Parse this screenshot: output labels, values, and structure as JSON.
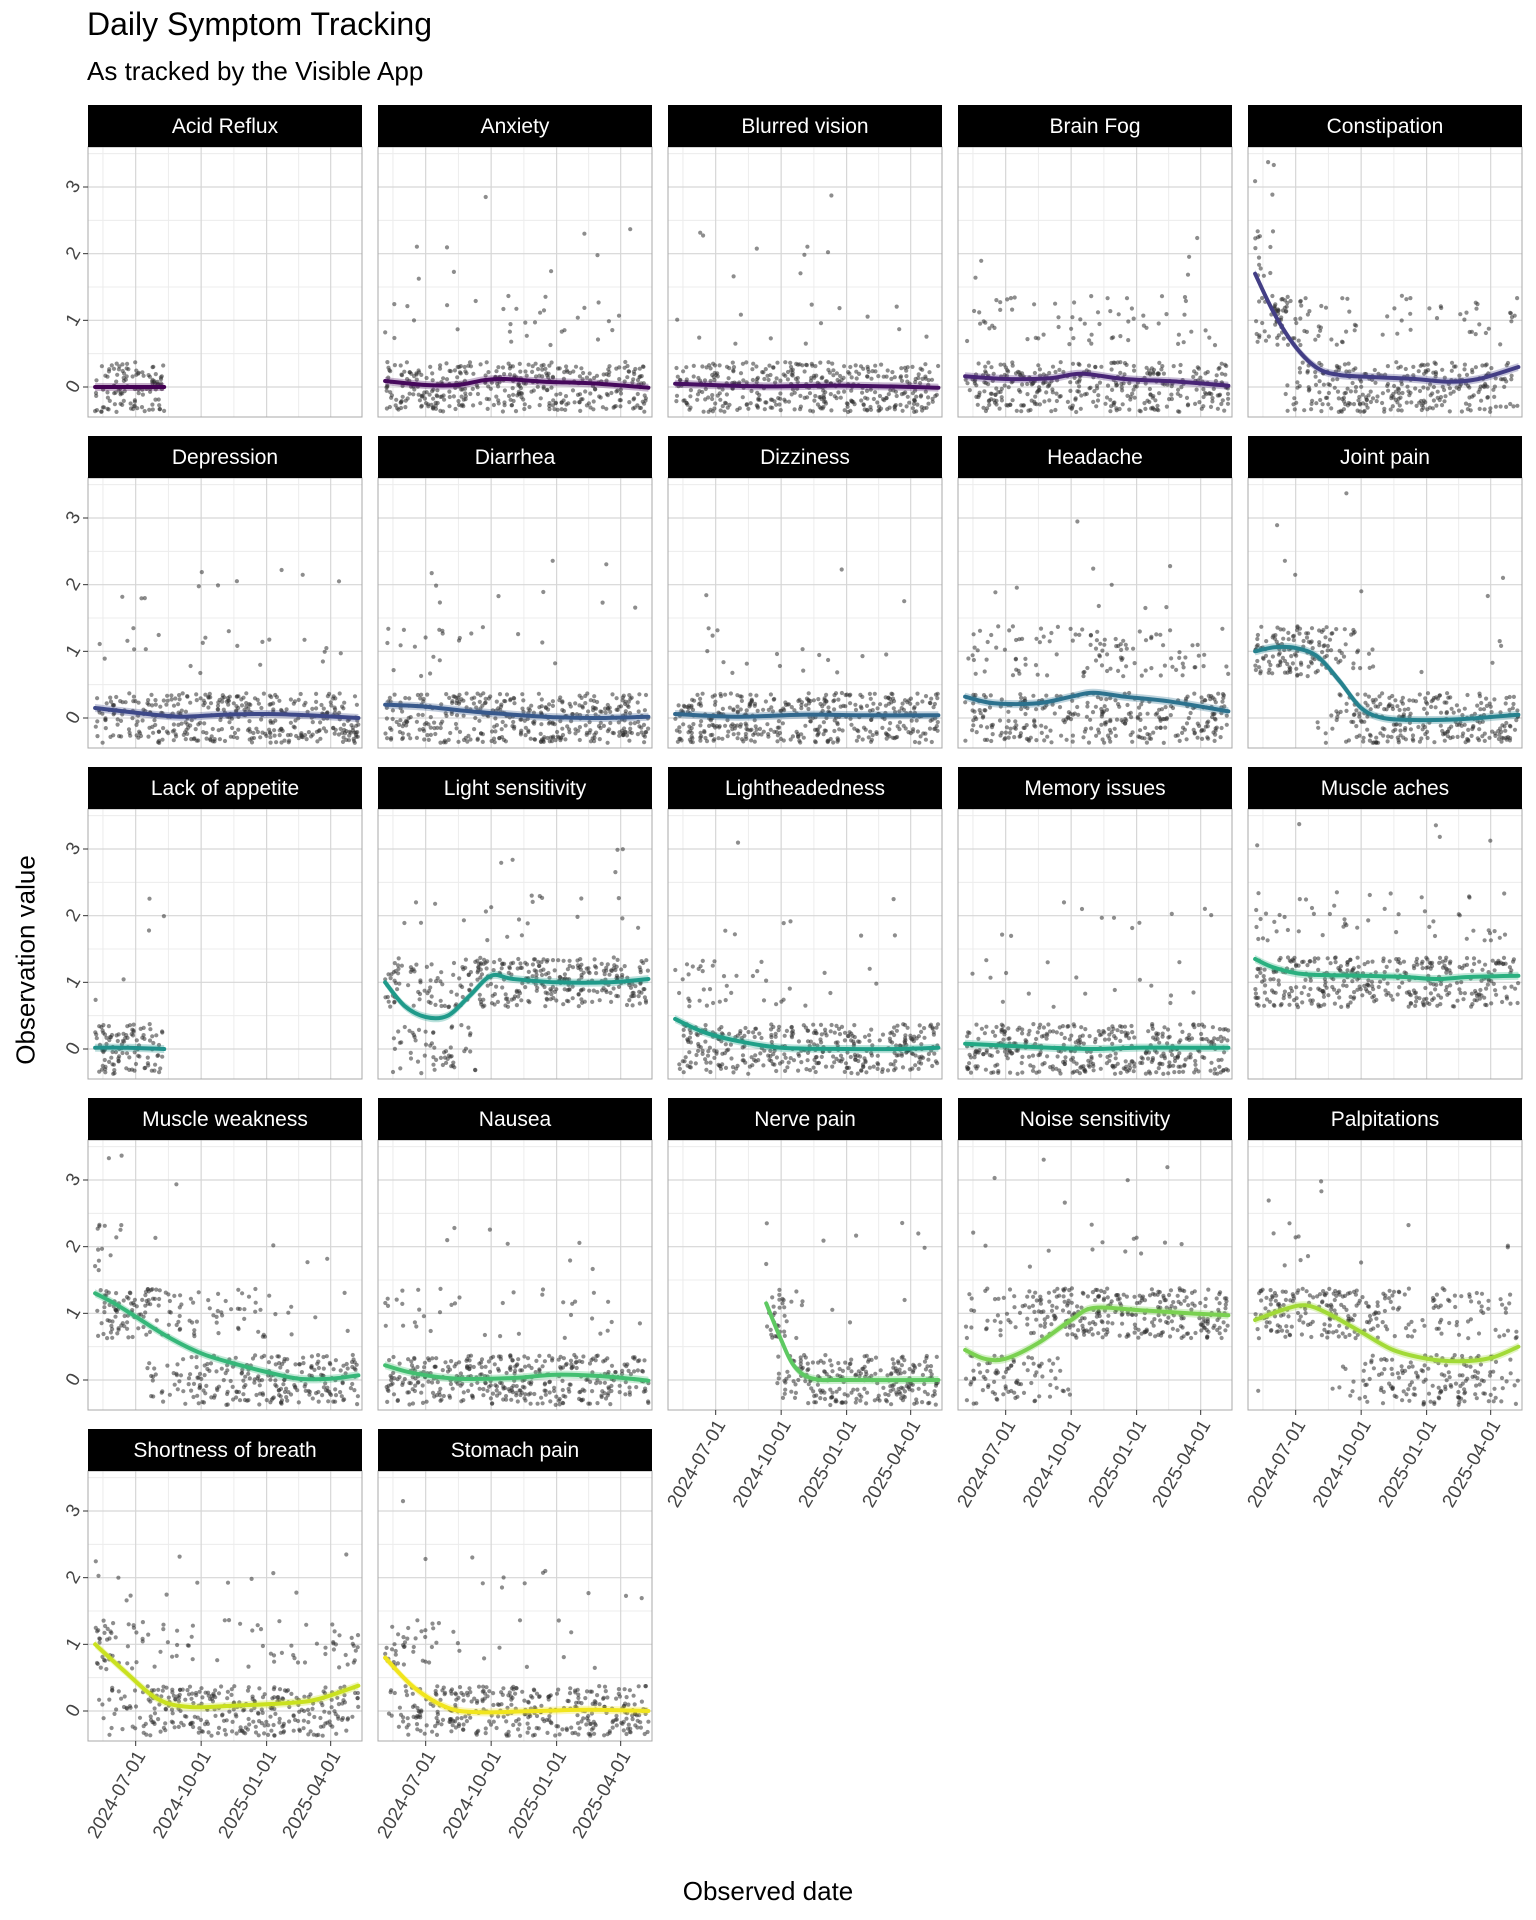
{
  "chart_data": {
    "type": "scatter",
    "title": "Daily Symptom Tracking",
    "subtitle": "As tracked by the Visible App",
    "xlabel": "Observed date",
    "ylabel": "Observation value",
    "x_axis": {
      "type": "date",
      "range": [
        "2024-04-25",
        "2025-05-15"
      ],
      "ticks": [
        "2024-07-01",
        "2024-10-01",
        "2025-01-01",
        "2025-04-01"
      ]
    },
    "y_axis": {
      "range": [
        -0.45,
        3.6
      ],
      "ticks": [
        "0",
        "1",
        "2",
        "3"
      ]
    },
    "grid": true,
    "facets": {
      "columns": 5,
      "strip_background": "#000000",
      "strip_text_color": "#ffffff"
    },
    "points": {
      "color": "#3a3a3a",
      "description": "daily observations, jittered around integer values"
    },
    "trend": {
      "method": "smoothed fit with shaded confidence band"
    },
    "panels": [
      {
        "name": "Acid Reflux",
        "color": "#440154",
        "trend": [
          [
            "2024-05-05",
            0.0
          ],
          [
            "2024-06-20",
            0.0
          ],
          [
            "2024-08-10",
            0.0
          ]
        ]
      },
      {
        "name": "Anxiety",
        "color": "#46085c",
        "trend": [
          [
            "2024-05-05",
            0.09
          ],
          [
            "2024-07-01",
            0.03
          ],
          [
            "2024-08-15",
            0.03
          ],
          [
            "2024-09-20",
            0.1
          ],
          [
            "2024-10-20",
            0.12
          ],
          [
            "2024-12-15",
            0.08
          ],
          [
            "2025-03-01",
            0.05
          ],
          [
            "2025-05-10",
            -0.01
          ]
        ]
      },
      {
        "name": "Blurred vision",
        "color": "#471063",
        "trend": [
          [
            "2024-05-05",
            0.05
          ],
          [
            "2024-09-01",
            0.01
          ],
          [
            "2025-01-01",
            0.02
          ],
          [
            "2025-05-10",
            -0.01
          ]
        ]
      },
      {
        "name": "Brain Fog",
        "color": "#482576",
        "trend": [
          [
            "2024-05-05",
            0.16
          ],
          [
            "2024-07-01",
            0.12
          ],
          [
            "2024-09-01",
            0.13
          ],
          [
            "2024-10-15",
            0.2
          ],
          [
            "2024-12-15",
            0.12
          ],
          [
            "2025-03-01",
            0.08
          ],
          [
            "2025-05-10",
            0.02
          ]
        ]
      },
      {
        "name": "Constipation",
        "color": "#433e85",
        "trend": [
          [
            "2024-05-05",
            1.7
          ],
          [
            "2024-06-01",
            1.1
          ],
          [
            "2024-07-01",
            0.6
          ],
          [
            "2024-08-01",
            0.28
          ],
          [
            "2024-09-01",
            0.18
          ],
          [
            "2024-10-15",
            0.15
          ],
          [
            "2024-12-15",
            0.12
          ],
          [
            "2025-02-01",
            0.08
          ],
          [
            "2025-03-15",
            0.12
          ],
          [
            "2025-05-10",
            0.3
          ]
        ]
      },
      {
        "name": "Depression",
        "color": "#3e4989",
        "trend": [
          [
            "2024-05-05",
            0.15
          ],
          [
            "2024-07-01",
            0.08
          ],
          [
            "2024-09-01",
            0.02
          ],
          [
            "2024-11-01",
            0.05
          ],
          [
            "2025-01-01",
            0.06
          ],
          [
            "2025-03-01",
            0.04
          ],
          [
            "2025-05-10",
            0.0
          ]
        ]
      },
      {
        "name": "Diarrhea",
        "color": "#38598c",
        "trend": [
          [
            "2024-05-05",
            0.2
          ],
          [
            "2024-07-01",
            0.17
          ],
          [
            "2024-09-01",
            0.1
          ],
          [
            "2024-11-01",
            0.05
          ],
          [
            "2025-01-01",
            0.01
          ],
          [
            "2025-03-01",
            0.0
          ],
          [
            "2025-05-10",
            0.02
          ]
        ]
      },
      {
        "name": "Dizziness",
        "color": "#31688e",
        "trend": [
          [
            "2024-05-05",
            0.06
          ],
          [
            "2024-08-01",
            0.02
          ],
          [
            "2024-11-01",
            0.05
          ],
          [
            "2025-02-01",
            0.04
          ],
          [
            "2025-05-10",
            0.04
          ]
        ]
      },
      {
        "name": "Headache",
        "color": "#2c728e",
        "trend": [
          [
            "2024-05-05",
            0.32
          ],
          [
            "2024-06-15",
            0.22
          ],
          [
            "2024-08-15",
            0.22
          ],
          [
            "2024-10-01",
            0.32
          ],
          [
            "2024-11-01",
            0.38
          ],
          [
            "2024-12-15",
            0.32
          ],
          [
            "2025-02-15",
            0.25
          ],
          [
            "2025-05-10",
            0.1
          ]
        ]
      },
      {
        "name": "Joint pain",
        "color": "#26828e",
        "trend": [
          [
            "2024-05-05",
            1.0
          ],
          [
            "2024-06-01",
            1.06
          ],
          [
            "2024-07-01",
            1.05
          ],
          [
            "2024-08-01",
            0.92
          ],
          [
            "2024-09-01",
            0.55
          ],
          [
            "2024-10-01",
            0.15
          ],
          [
            "2024-11-01",
            0.0
          ],
          [
            "2024-12-15",
            -0.03
          ],
          [
            "2025-02-15",
            -0.02
          ],
          [
            "2025-05-10",
            0.05
          ]
        ]
      },
      {
        "name": "Lack of appetite",
        "color": "#21918c",
        "trend": [
          [
            "2024-05-05",
            0.02
          ],
          [
            "2024-06-20",
            0.02
          ],
          [
            "2024-08-10",
            0.0
          ]
        ]
      },
      {
        "name": "Light sensitivity",
        "color": "#1f9a8a",
        "trend": [
          [
            "2024-05-05",
            1.0
          ],
          [
            "2024-06-01",
            0.65
          ],
          [
            "2024-07-01",
            0.48
          ],
          [
            "2024-08-01",
            0.5
          ],
          [
            "2024-09-01",
            0.8
          ],
          [
            "2024-10-01",
            1.1
          ],
          [
            "2024-11-01",
            1.05
          ],
          [
            "2025-01-01",
            1.0
          ],
          [
            "2025-03-15",
            1.0
          ],
          [
            "2025-05-10",
            1.05
          ]
        ]
      },
      {
        "name": "Lightheadedness",
        "color": "#1fa088",
        "trend": [
          [
            "2024-05-05",
            0.45
          ],
          [
            "2024-06-15",
            0.25
          ],
          [
            "2024-08-01",
            0.12
          ],
          [
            "2024-10-01",
            0.02
          ],
          [
            "2025-01-01",
            0.0
          ],
          [
            "2025-03-15",
            0.0
          ],
          [
            "2025-05-10",
            0.02
          ]
        ]
      },
      {
        "name": "Memory issues",
        "color": "#22a884",
        "trend": [
          [
            "2024-05-05",
            0.08
          ],
          [
            "2024-07-01",
            0.05
          ],
          [
            "2024-09-01",
            0.02
          ],
          [
            "2024-11-01",
            0.0
          ],
          [
            "2025-01-01",
            0.02
          ],
          [
            "2025-03-15",
            0.02
          ],
          [
            "2025-05-10",
            0.02
          ]
        ]
      },
      {
        "name": "Muscle aches",
        "color": "#2ab07f",
        "trend": [
          [
            "2024-05-05",
            1.35
          ],
          [
            "2024-06-01",
            1.22
          ],
          [
            "2024-07-15",
            1.12
          ],
          [
            "2024-10-01",
            1.1
          ],
          [
            "2024-12-01",
            1.08
          ],
          [
            "2025-01-15",
            1.05
          ],
          [
            "2025-03-01",
            1.08
          ],
          [
            "2025-05-10",
            1.1
          ]
        ]
      },
      {
        "name": "Muscle weakness",
        "color": "#35b779",
        "trend": [
          [
            "2024-05-05",
            1.3
          ],
          [
            "2024-06-01",
            1.15
          ],
          [
            "2024-07-01",
            0.95
          ],
          [
            "2024-08-15",
            0.65
          ],
          [
            "2024-10-01",
            0.4
          ],
          [
            "2024-11-15",
            0.25
          ],
          [
            "2025-01-01",
            0.12
          ],
          [
            "2025-02-15",
            0.02
          ],
          [
            "2025-04-01",
            0.02
          ],
          [
            "2025-05-10",
            0.07
          ]
        ]
      },
      {
        "name": "Nausea",
        "color": "#43bf71",
        "trend": [
          [
            "2024-05-05",
            0.22
          ],
          [
            "2024-06-15",
            0.1
          ],
          [
            "2024-08-15",
            0.02
          ],
          [
            "2024-11-01",
            0.03
          ],
          [
            "2025-01-01",
            0.08
          ],
          [
            "2025-03-15",
            0.05
          ],
          [
            "2025-05-10",
            -0.01
          ]
        ]
      },
      {
        "name": "Nerve pain",
        "color": "#5ec962",
        "trend": [
          [
            "2024-09-10",
            1.15
          ],
          [
            "2024-10-01",
            0.6
          ],
          [
            "2024-10-20",
            0.2
          ],
          [
            "2024-11-15",
            0.02
          ],
          [
            "2025-01-01",
            0.0
          ],
          [
            "2025-05-10",
            0.0
          ]
        ]
      },
      {
        "name": "Noise sensitivity",
        "color": "#7ad151",
        "trend": [
          [
            "2024-05-05",
            0.45
          ],
          [
            "2024-06-01",
            0.32
          ],
          [
            "2024-07-01",
            0.32
          ],
          [
            "2024-08-15",
            0.55
          ],
          [
            "2024-10-01",
            0.9
          ],
          [
            "2024-11-01",
            1.08
          ],
          [
            "2025-01-01",
            1.05
          ],
          [
            "2025-03-15",
            1.0
          ],
          [
            "2025-05-10",
            0.97
          ]
        ]
      },
      {
        "name": "Palpitations",
        "color": "#a2da37",
        "trend": [
          [
            "2024-05-05",
            0.9
          ],
          [
            "2024-06-15",
            1.06
          ],
          [
            "2024-07-15",
            1.12
          ],
          [
            "2024-08-15",
            1.0
          ],
          [
            "2024-10-01",
            0.72
          ],
          [
            "2024-11-15",
            0.45
          ],
          [
            "2025-01-01",
            0.32
          ],
          [
            "2025-02-15",
            0.28
          ],
          [
            "2025-04-01",
            0.33
          ],
          [
            "2025-05-10",
            0.5
          ]
        ]
      },
      {
        "name": "Shortness of breath",
        "color": "#cae11f",
        "trend": [
          [
            "2024-05-05",
            1.0
          ],
          [
            "2024-06-15",
            0.6
          ],
          [
            "2024-08-01",
            0.18
          ],
          [
            "2024-09-15",
            0.06
          ],
          [
            "2024-11-15",
            0.08
          ],
          [
            "2025-02-01",
            0.12
          ],
          [
            "2025-03-15",
            0.18
          ],
          [
            "2025-05-10",
            0.38
          ]
        ]
      },
      {
        "name": "Stomach pain",
        "color": "#f1e51d",
        "trend": [
          [
            "2024-05-05",
            0.8
          ],
          [
            "2024-06-15",
            0.35
          ],
          [
            "2024-08-01",
            0.05
          ],
          [
            "2024-09-15",
            -0.02
          ],
          [
            "2024-12-01",
            0.0
          ],
          [
            "2025-02-15",
            0.02
          ],
          [
            "2025-05-10",
            0.0
          ]
        ]
      }
    ]
  }
}
